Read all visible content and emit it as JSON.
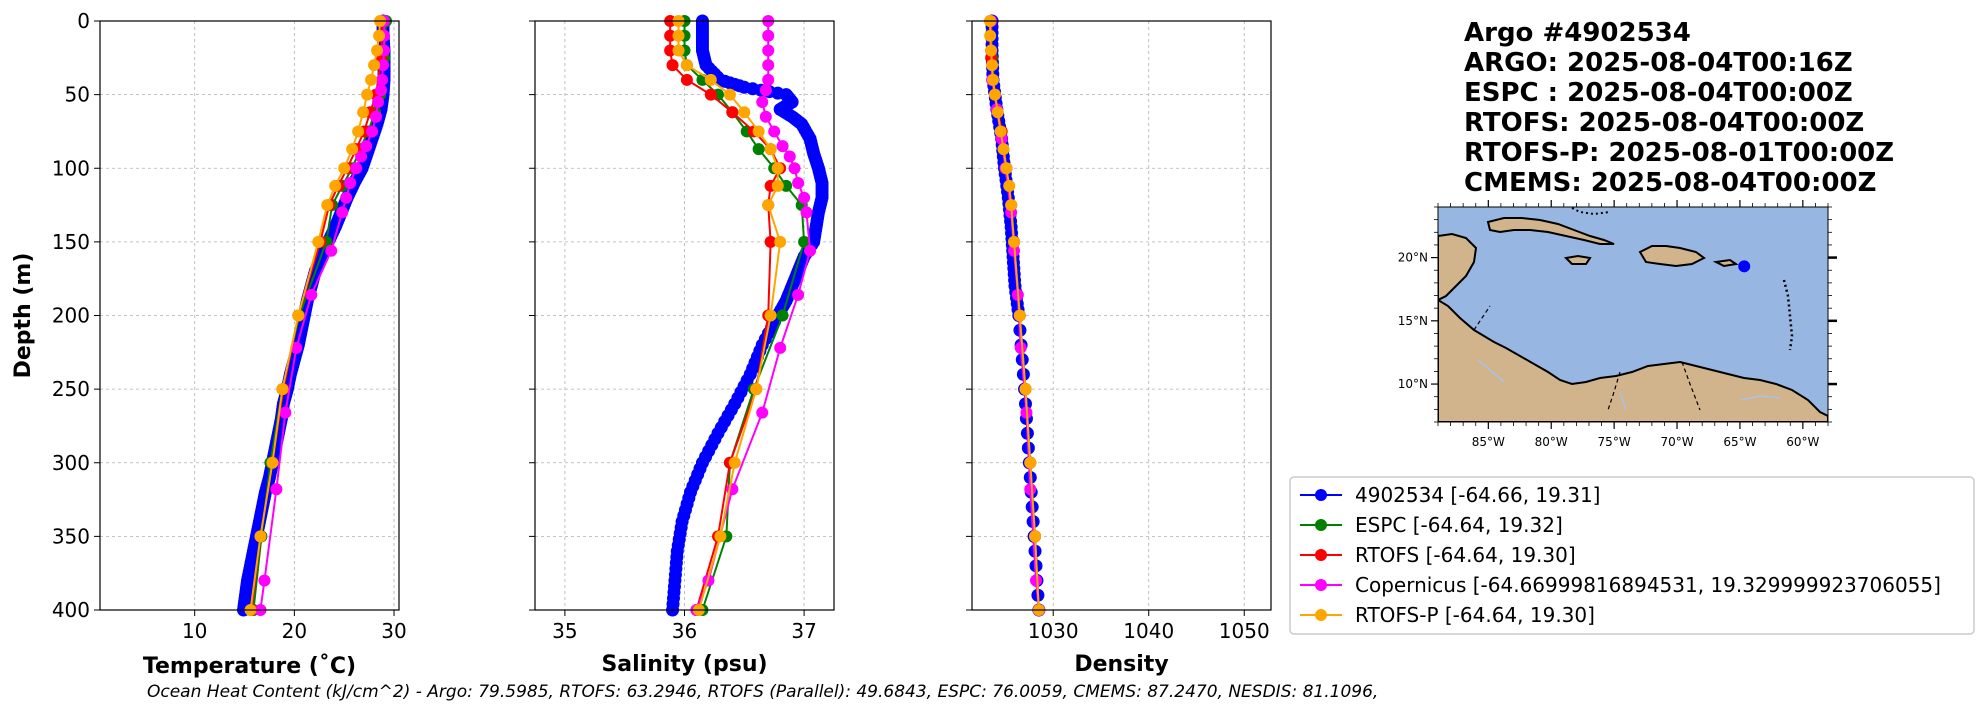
{
  "chart_data": [
    {
      "type": "line",
      "panel": "temperature",
      "xlabel": "Temperature (˚C)",
      "ylabel": "Depth (m)",
      "xlim": [
        0.5,
        30.5
      ],
      "ylim": [
        400,
        0
      ],
      "xticks": [
        10,
        20,
        30
      ],
      "yticks": [
        0,
        50,
        100,
        150,
        200,
        250,
        300,
        350,
        400
      ],
      "grid": true,
      "series": [
        {
          "name": "4902534",
          "color": "#0000ff",
          "dense": true,
          "depth": [
            0,
            10,
            20,
            30,
            40,
            50,
            60,
            70,
            80,
            90,
            100,
            110,
            120,
            130,
            140,
            150,
            160,
            170,
            180,
            190,
            200,
            210,
            220,
            230,
            240,
            250,
            260,
            270,
            280,
            290,
            300,
            310,
            320,
            330,
            340,
            350,
            360,
            370,
            380,
            390,
            400
          ],
          "values": [
            28.9,
            28.9,
            29.0,
            29.0,
            29.0,
            28.9,
            28.7,
            28.3,
            27.8,
            27.3,
            26.8,
            26.0,
            25.3,
            24.7,
            24.1,
            23.4,
            22.8,
            22.1,
            21.7,
            21.3,
            21.0,
            20.7,
            20.4,
            20.0,
            19.6,
            19.3,
            18.9,
            18.7,
            18.4,
            18.1,
            17.8,
            17.5,
            17.1,
            16.8,
            16.5,
            16.2,
            15.9,
            15.6,
            15.3,
            15.1,
            14.9
          ]
        },
        {
          "name": "ESPC",
          "color": "#008000",
          "depth": [
            0,
            25,
            50,
            62,
            75,
            87,
            100,
            112,
            125,
            150,
            200,
            250,
            300,
            350,
            400
          ],
          "values": [
            29.2,
            29.0,
            28.6,
            28.1,
            27.4,
            26.6,
            25.8,
            24.8,
            23.8,
            23.2,
            20.5,
            18.8,
            17.6,
            16.7,
            15.9
          ]
        },
        {
          "name": "RTOFS",
          "color": "#ff0000",
          "depth": [
            0,
            25,
            50,
            62,
            75,
            87,
            100,
            112,
            125,
            150,
            200,
            250,
            300,
            350,
            400
          ],
          "values": [
            28.8,
            28.7,
            28.2,
            27.6,
            27.0,
            26.2,
            25.3,
            24.4,
            23.5,
            22.6,
            20.4,
            18.9,
            17.8,
            16.6,
            15.7
          ]
        },
        {
          "name": "Copernicus",
          "color": "#ff00ff",
          "depth": [
            0,
            10,
            20,
            30,
            40,
            47,
            55,
            65,
            75,
            85,
            92,
            100,
            110,
            120,
            130,
            156,
            186,
            222,
            266,
            318,
            380,
            400
          ],
          "values": [
            29.0,
            29.0,
            29.0,
            28.9,
            28.8,
            28.7,
            28.4,
            28.2,
            27.8,
            27.2,
            26.7,
            26.2,
            25.6,
            25.2,
            24.8,
            23.7,
            21.7,
            20.2,
            19.1,
            18.2,
            17.0,
            16.6
          ]
        },
        {
          "name": "RTOFS-P",
          "color": "#ffa500",
          "depth": [
            0,
            10,
            20,
            30,
            40,
            50,
            62,
            75,
            87,
            100,
            112,
            125,
            150,
            200,
            250,
            300,
            350,
            400
          ],
          "values": [
            28.6,
            28.5,
            28.3,
            28.0,
            27.7,
            27.3,
            26.9,
            26.4,
            25.8,
            25.0,
            24.1,
            23.3,
            22.4,
            20.4,
            18.8,
            17.8,
            16.6,
            15.6
          ]
        }
      ]
    },
    {
      "type": "line",
      "panel": "salinity",
      "xlabel": "Salinity (psu)",
      "xlim": [
        34.75,
        37.25
      ],
      "ylim": [
        400,
        0
      ],
      "xticks": [
        35,
        36,
        37
      ],
      "grid": true,
      "series": [
        {
          "name": "4902534",
          "color": "#0000ff",
          "dense": true,
          "depth": [
            0,
            10,
            20,
            30,
            40,
            45,
            50,
            55,
            60,
            65,
            70,
            80,
            90,
            100,
            110,
            120,
            130,
            140,
            150,
            160,
            170,
            180,
            190,
            200,
            220,
            240,
            260,
            280,
            300,
            320,
            340,
            360,
            380,
            400
          ],
          "values": [
            36.15,
            36.15,
            36.15,
            36.18,
            36.3,
            36.5,
            36.85,
            36.9,
            36.8,
            36.9,
            36.98,
            37.05,
            37.08,
            37.12,
            37.15,
            37.15,
            37.12,
            37.1,
            37.08,
            37.0,
            36.95,
            36.9,
            36.85,
            36.78,
            36.65,
            36.55,
            36.42,
            36.28,
            36.15,
            36.05,
            35.98,
            35.94,
            35.92,
            35.9
          ]
        },
        {
          "name": "ESPC",
          "color": "#008000",
          "depth": [
            0,
            10,
            20,
            30,
            40,
            50,
            62,
            75,
            87,
            100,
            112,
            125,
            150,
            200,
            250,
            300,
            350,
            400
          ],
          "values": [
            36.0,
            36.0,
            36.0,
            36.02,
            36.15,
            36.28,
            36.4,
            36.52,
            36.62,
            36.75,
            36.85,
            36.98,
            37.0,
            36.82,
            36.58,
            36.38,
            36.35,
            36.15
          ]
        },
        {
          "name": "RTOFS",
          "color": "#ff0000",
          "depth": [
            0,
            10,
            20,
            30,
            40,
            50,
            62,
            75,
            87,
            100,
            112,
            125,
            150,
            200,
            250,
            300,
            350,
            400
          ],
          "values": [
            35.88,
            35.88,
            35.88,
            35.9,
            36.02,
            36.22,
            36.4,
            36.58,
            36.72,
            36.8,
            36.72,
            36.7,
            36.72,
            36.7,
            36.6,
            36.38,
            36.28,
            36.1
          ]
        },
        {
          "name": "Copernicus",
          "color": "#ff00ff",
          "depth": [
            0,
            10,
            20,
            30,
            40,
            47,
            55,
            65,
            75,
            85,
            92,
            100,
            110,
            120,
            130,
            156,
            186,
            222,
            266,
            318,
            380,
            400
          ],
          "values": [
            36.7,
            36.7,
            36.7,
            36.7,
            36.7,
            36.68,
            36.65,
            36.68,
            36.75,
            36.82,
            36.88,
            36.92,
            36.95,
            37.0,
            37.02,
            37.05,
            36.95,
            36.8,
            36.65,
            36.4,
            36.2,
            36.1
          ]
        },
        {
          "name": "RTOFS-P",
          "color": "#ffa500",
          "depth": [
            0,
            10,
            20,
            30,
            40,
            50,
            62,
            75,
            87,
            100,
            112,
            125,
            150,
            200,
            250,
            300,
            350,
            400
          ],
          "values": [
            35.95,
            35.95,
            35.95,
            36.02,
            36.22,
            36.38,
            36.5,
            36.62,
            36.72,
            36.78,
            36.78,
            36.7,
            36.8,
            36.72,
            36.6,
            36.42,
            36.3,
            36.12
          ]
        }
      ]
    },
    {
      "type": "line",
      "panel": "density",
      "xlabel": "Density",
      "xlim": [
        1021.5,
        1052.8
      ],
      "ylim": [
        400,
        0
      ],
      "xticks": [
        1030,
        1040,
        1050
      ],
      "grid": true,
      "series": [
        {
          "name": "4902534",
          "color": "#0000ff",
          "dense": true,
          "depth": [
            0,
            20,
            40,
            60,
            80,
            100,
            120,
            140,
            160,
            180,
            200,
            250,
            300,
            350,
            400
          ],
          "values": [
            1023.6,
            1023.6,
            1023.7,
            1024.1,
            1024.6,
            1024.9,
            1025.3,
            1025.6,
            1025.8,
            1026.0,
            1026.4,
            1027.0,
            1027.5,
            1028.0,
            1028.5
          ]
        },
        {
          "name": "ESPC",
          "color": "#008000",
          "depth": [
            0,
            25,
            50,
            75,
            100,
            125,
            150,
            200,
            250,
            300,
            350,
            400
          ],
          "values": [
            1023.5,
            1023.6,
            1023.9,
            1024.6,
            1025.1,
            1025.6,
            1025.9,
            1026.5,
            1027.1,
            1027.6,
            1028.1,
            1028.5
          ]
        },
        {
          "name": "RTOFS",
          "color": "#ff0000",
          "depth": [
            0,
            25,
            50,
            75,
            100,
            125,
            150,
            200,
            250,
            300,
            350,
            400
          ],
          "values": [
            1023.4,
            1023.5,
            1023.9,
            1024.6,
            1025.1,
            1025.6,
            1025.9,
            1026.5,
            1027.1,
            1027.6,
            1028.1,
            1028.5
          ]
        },
        {
          "name": "Copernicus",
          "color": "#ff00ff",
          "depth": [
            0,
            20,
            40,
            60,
            80,
            100,
            130,
            156,
            186,
            222,
            266,
            318,
            380,
            400
          ],
          "values": [
            1023.5,
            1023.5,
            1023.6,
            1024.1,
            1024.6,
            1025.0,
            1025.6,
            1025.9,
            1026.3,
            1026.6,
            1027.2,
            1027.6,
            1028.2,
            1028.5
          ]
        },
        {
          "name": "RTOFS-P",
          "color": "#ffa500",
          "depth": [
            0,
            10,
            20,
            30,
            40,
            50,
            62,
            75,
            87,
            100,
            112,
            125,
            150,
            200,
            250,
            300,
            350,
            400
          ],
          "values": [
            1023.4,
            1023.4,
            1023.5,
            1023.6,
            1023.7,
            1023.9,
            1024.2,
            1024.5,
            1024.8,
            1025.1,
            1025.4,
            1025.6,
            1025.9,
            1026.5,
            1027.1,
            1027.6,
            1028.1,
            1028.5
          ]
        }
      ]
    }
  ],
  "header": {
    "lines": [
      "Argo #4902534",
      "ARGO: 2025-08-04T00:16Z",
      "ESPC : 2025-08-04T00:00Z",
      "RTOFS: 2025-08-04T00:00Z",
      "RTOFS-P: 2025-08-01T00:00Z",
      "CMEMS: 2025-08-04T00:00Z"
    ]
  },
  "map": {
    "lon_range": [
      -89,
      -58
    ],
    "lat_range": [
      7,
      24
    ],
    "lon_ticks": [
      "85°W",
      "80°W",
      "75°W",
      "70°W",
      "65°W",
      "60°W"
    ],
    "lon_tick_values": [
      -85,
      -80,
      -75,
      -70,
      -65,
      -60
    ],
    "lat_ticks": [
      "20°N",
      "15°N",
      "10°N"
    ],
    "lat_tick_values": [
      20,
      15,
      10
    ],
    "float_position": {
      "lon": -64.66,
      "lat": 19.31
    },
    "colors": {
      "ocean": "#97b6e1",
      "land": "#d2b48c",
      "marker": "#0000ff"
    }
  },
  "legend": {
    "entries": [
      {
        "label": "4902534 [-64.66, 19.31]",
        "color": "#0000ff"
      },
      {
        "label": "ESPC [-64.64, 19.32]",
        "color": "#008000"
      },
      {
        "label": "RTOFS [-64.64, 19.30]",
        "color": "#ff0000"
      },
      {
        "label": "Copernicus [-64.66999816894531, 19.329999923706055]",
        "color": "#ff00ff"
      },
      {
        "label": "RTOFS-P [-64.64, 19.30]",
        "color": "#ffa500"
      }
    ]
  },
  "footer": {
    "ohc_text": "Ocean Heat Content (kJ/cm^2) - Argo: 79.5985,  RTOFS: 63.2946,  RTOFS (Parallel): 49.6843,  ESPC: 76.0059,  CMEMS: 87.2470,  NESDIS: 81.1096,"
  }
}
